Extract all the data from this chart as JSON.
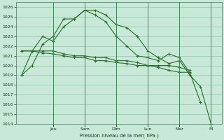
{
  "background_color": "#c8e8d8",
  "grid_color": "#7abf9a",
  "line_color": "#2a6c2a",
  "xlabel_text": "Pression niveau de la mer( hPa )",
  "ylim": [
    1014,
    1026.5
  ],
  "yticks": [
    1014,
    1015,
    1016,
    1017,
    1018,
    1019,
    1020,
    1021,
    1022,
    1023,
    1024,
    1025,
    1026
  ],
  "day_labels": [
    "Jeu",
    "Sam",
    "Dim",
    "Lun",
    "Mar",
    "M"
  ],
  "day_positions": [
    3.0,
    6.0,
    9.0,
    12.0,
    15.0,
    18.0
  ],
  "xlim": [
    -0.5,
    19.0
  ],
  "series": [
    {
      "x": [
        0,
        1,
        2,
        3,
        4,
        5,
        6,
        7,
        8,
        9,
        10,
        11,
        12,
        13,
        14,
        15,
        16,
        17,
        18
      ],
      "y": [
        1019.0,
        1021.5,
        1023.0,
        1022.5,
        1024.0,
        1024.8,
        1025.7,
        1025.7,
        1025.2,
        1024.2,
        1023.9,
        1023.0,
        1021.5,
        1020.8,
        1020.2,
        1020.5,
        1019.0,
        1017.8,
        1014.0
      ]
    },
    {
      "x": [
        0,
        1,
        2,
        3,
        4,
        5,
        6,
        7,
        8,
        9,
        10,
        11,
        12,
        13,
        14,
        15,
        16,
        17
      ],
      "y": [
        1019.0,
        1020.0,
        1022.2,
        1023.0,
        1024.8,
        1024.8,
        1025.7,
        1025.2,
        1024.5,
        1023.0,
        1022.0,
        1021.0,
        1020.8,
        1020.5,
        1021.2,
        1020.8,
        1019.2,
        1016.2
      ]
    },
    {
      "x": [
        0,
        1,
        2,
        3,
        4,
        5,
        6,
        7,
        8,
        9,
        10,
        11,
        12,
        13,
        14,
        15,
        16
      ],
      "y": [
        1021.5,
        1021.5,
        1021.5,
        1021.5,
        1021.2,
        1021.0,
        1021.0,
        1020.8,
        1020.8,
        1020.5,
        1020.5,
        1020.3,
        1020.0,
        1020.0,
        1020.0,
        1019.8,
        1019.5
      ]
    },
    {
      "x": [
        0,
        1,
        2,
        3,
        4,
        5,
        6,
        7,
        8,
        9,
        10,
        11,
        12,
        13,
        14,
        15,
        16
      ],
      "y": [
        1021.5,
        1021.5,
        1021.3,
        1021.2,
        1021.0,
        1020.8,
        1020.8,
        1020.5,
        1020.5,
        1020.3,
        1020.2,
        1020.0,
        1020.0,
        1019.8,
        1019.5,
        1019.3,
        1019.3
      ]
    }
  ]
}
